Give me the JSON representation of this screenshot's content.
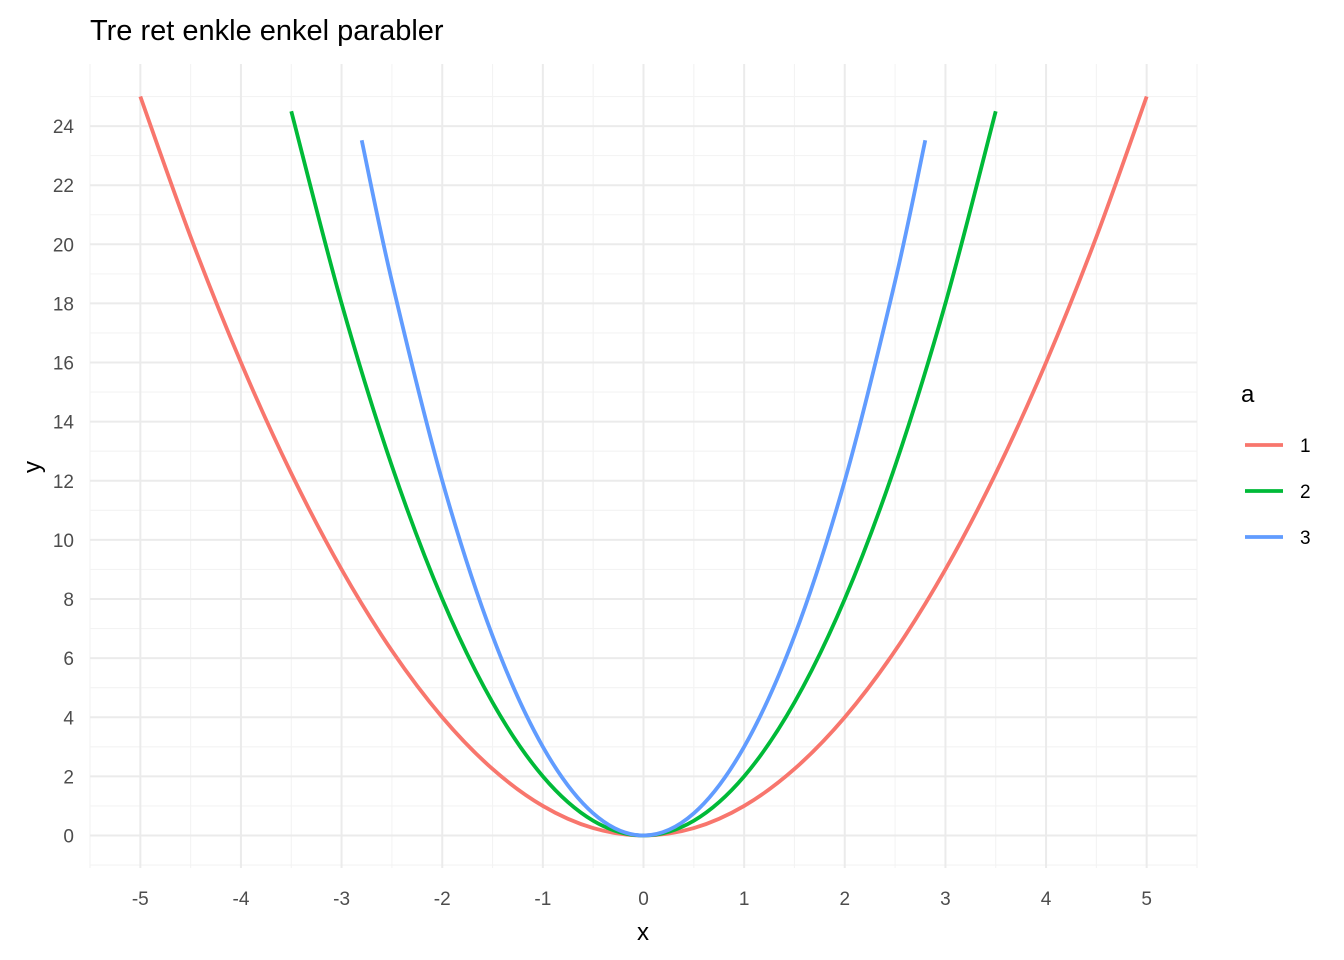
{
  "chart_data": {
    "type": "line",
    "title": "Tre ret enkle enkel parabler",
    "xlabel": "x",
    "ylabel": "y",
    "xlim": [
      -5.5,
      5.5
    ],
    "ylim": [
      -1.1,
      26.1
    ],
    "x_ticks": [
      -5,
      -4,
      -3,
      -2,
      -1,
      0,
      1,
      2,
      3,
      4,
      5
    ],
    "y_ticks": [
      0,
      2,
      4,
      6,
      8,
      10,
      12,
      14,
      16,
      18,
      20,
      22,
      24
    ],
    "x_tick_labels": [
      "-5",
      "-4",
      "-3",
      "-2",
      "-1",
      "0",
      "1",
      "2",
      "3",
      "4",
      "5"
    ],
    "y_tick_labels": [
      "0",
      "2",
      "4",
      "6",
      "8",
      "10",
      "12",
      "14",
      "16",
      "18",
      "20",
      "22",
      "24"
    ],
    "grid": true,
    "legend": {
      "title": "a",
      "placement": "right"
    },
    "series": [
      {
        "name": "1",
        "color": "#F8766D",
        "x": [
          -5.0,
          -4.5,
          -4.0,
          -3.5,
          -3.0,
          -2.5,
          -2.0,
          -1.5,
          -1.0,
          -0.5,
          0.0,
          0.5,
          1.0,
          1.5,
          2.0,
          2.5,
          3.0,
          3.5,
          4.0,
          4.5,
          5.0
        ],
        "y": [
          25.0,
          20.25,
          16.0,
          12.25,
          9.0,
          6.25,
          4.0,
          2.25,
          1.0,
          0.25,
          0.0,
          0.25,
          1.0,
          2.25,
          4.0,
          6.25,
          9.0,
          12.25,
          16.0,
          20.25,
          25.0
        ]
      },
      {
        "name": "2",
        "color": "#00BA38",
        "x": [
          -3.5,
          -3.0,
          -2.5,
          -2.0,
          -1.5,
          -1.0,
          -0.5,
          0.0,
          0.5,
          1.0,
          1.5,
          2.0,
          2.5,
          3.0,
          3.5
        ],
        "y": [
          24.5,
          18.0,
          12.5,
          8.0,
          4.5,
          2.0,
          0.5,
          0.0,
          0.5,
          2.0,
          4.5,
          8.0,
          12.5,
          18.0,
          24.5
        ]
      },
      {
        "name": "3",
        "color": "#619CFF",
        "x": [
          -2.8,
          -2.5,
          -2.0,
          -1.5,
          -1.0,
          -0.5,
          0.0,
          0.5,
          1.0,
          1.5,
          2.0,
          2.5,
          2.8
        ],
        "y": [
          23.52,
          18.75,
          12.0,
          6.75,
          3.0,
          0.75,
          0.0,
          0.75,
          3.0,
          6.75,
          12.0,
          18.75,
          23.52
        ]
      }
    ]
  }
}
